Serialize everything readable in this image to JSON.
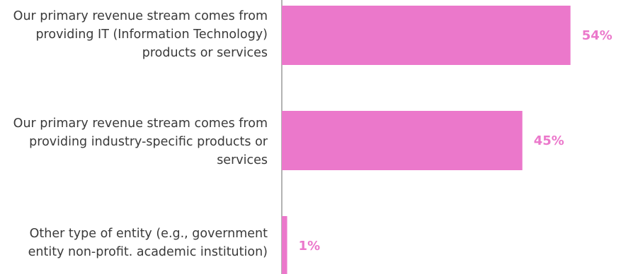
{
  "chart_data": {
    "type": "bar",
    "orientation": "horizontal",
    "categories": [
      "Our primary revenue stream comes from providing IT (Information Technology) products or services",
      "Our primary revenue stream comes from providing industry-specific products or services",
      "Other type of entity (e.g., government entity non-profit. academic institution)"
    ],
    "values": [
      54,
      45,
      1
    ],
    "value_labels": [
      "54%",
      "45%",
      "1%"
    ],
    "xlim": [
      0,
      100
    ],
    "bar_color": "#eb78cb",
    "label_color": "#eb78cb",
    "axis_color": "#9a9a9a",
    "grid": false,
    "legend": "none"
  }
}
